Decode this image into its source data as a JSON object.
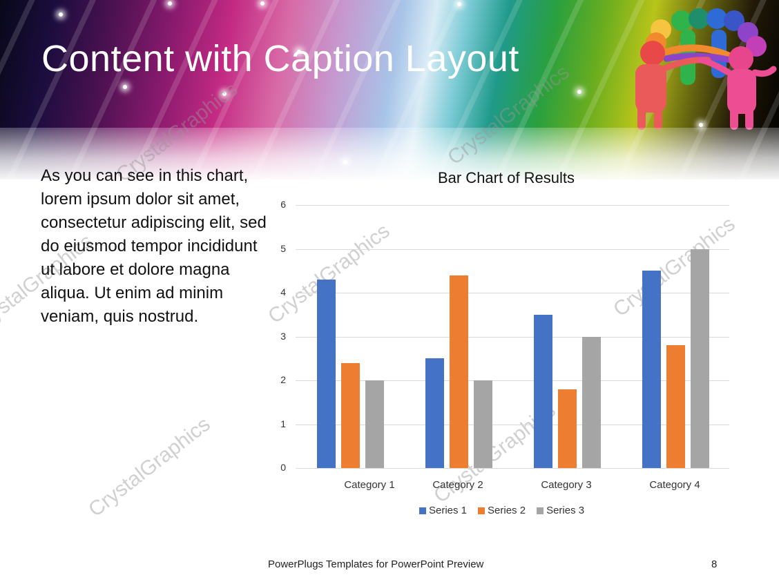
{
  "slide": {
    "title": "Content with Caption Layout",
    "caption": "As you can see in this chart, lorem ipsum dolor sit amet, consectetur adipiscing elit, sed do eiusmod tempor incididunt ut labore et dolore magna aliqua. Ut enim ad minim veniam, quis nostrud.",
    "footer": "PowerPlugs Templates for PowerPoint  Preview",
    "page_number": "8",
    "watermark": "CrystalGraphics"
  },
  "colors": {
    "series1": "#4472C4",
    "series2": "#ED7D31",
    "series3": "#A5A5A5",
    "gridline": "#D9D9D9"
  },
  "chart_data": {
    "type": "bar",
    "title": "Bar Chart of Results",
    "xlabel": "",
    "ylabel": "",
    "categories": [
      "Category 1",
      "Category 2",
      "Category 3",
      "Category 4"
    ],
    "series": [
      {
        "name": "Series 1",
        "values": [
          4.3,
          2.5,
          3.5,
          4.5
        ]
      },
      {
        "name": "Series 2",
        "values": [
          2.4,
          4.4,
          1.8,
          2.8
        ]
      },
      {
        "name": "Series 3",
        "values": [
          2,
          2,
          3,
          5
        ]
      }
    ],
    "ylim": [
      0,
      6
    ],
    "yticks": [
      "0",
      "1",
      "2",
      "3",
      "4",
      "5",
      "6"
    ],
    "grid": true,
    "legend_position": "bottom"
  }
}
